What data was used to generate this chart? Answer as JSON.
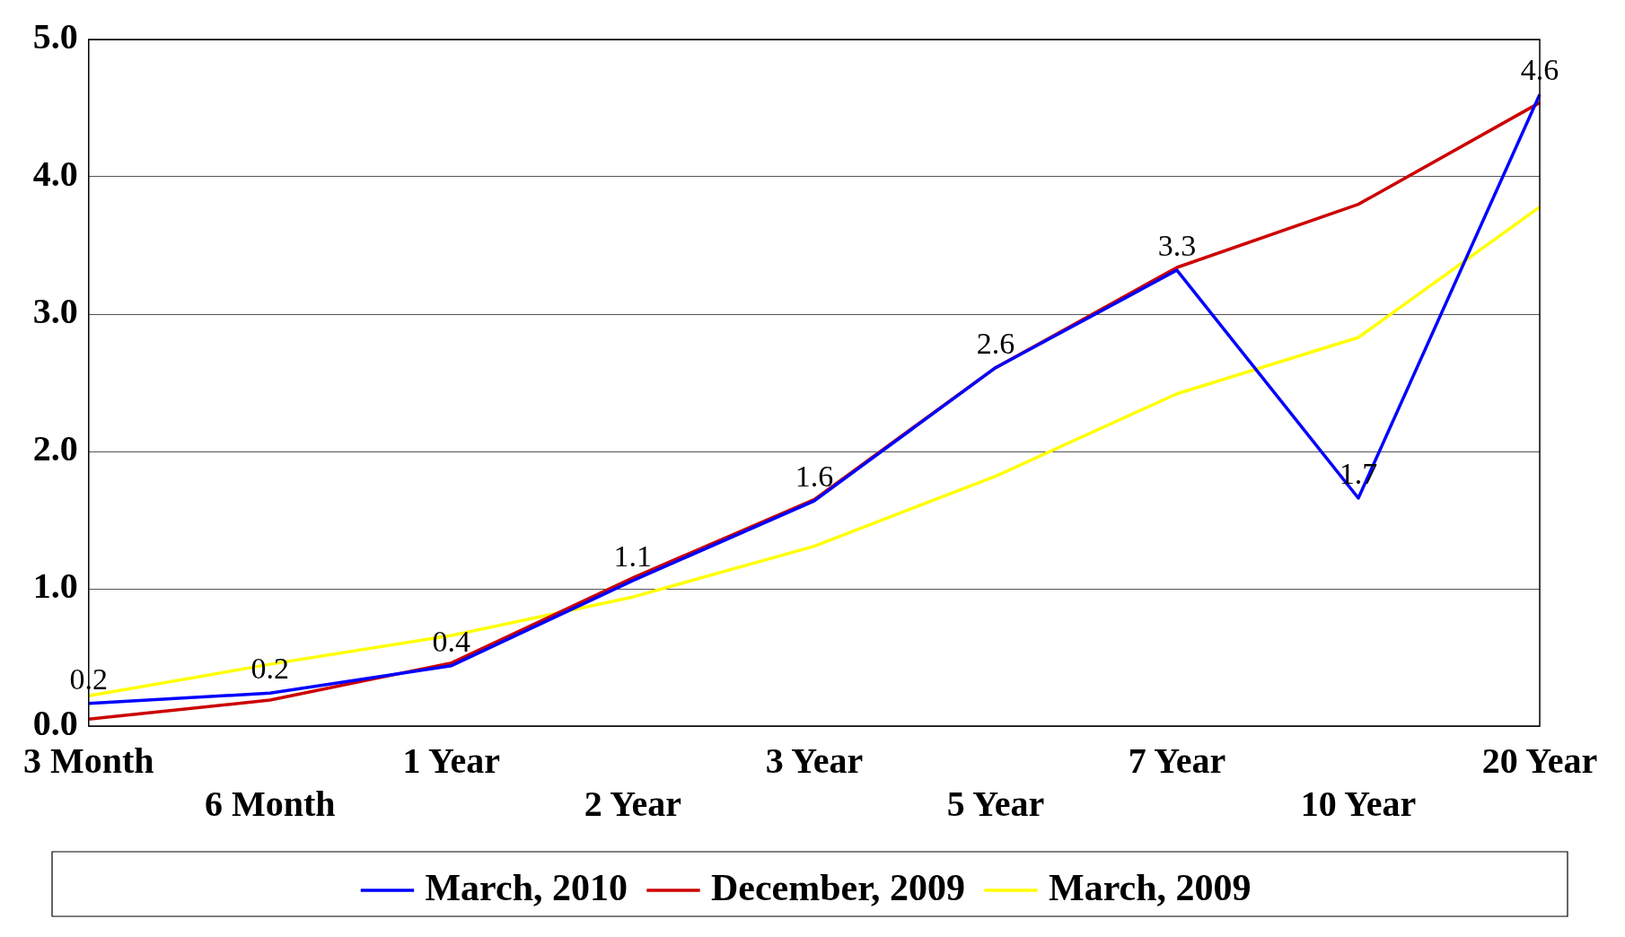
{
  "chart_data": {
    "type": "line",
    "categories": [
      "3 Month",
      "6 Month",
      "1 Year",
      "2 Year",
      "3 Year",
      "5 Year",
      "7 Year",
      "10 Year",
      "20 Year"
    ],
    "series": [
      {
        "name": "March, 2010",
        "color": "#0000ff",
        "values": [
          0.165,
          0.24,
          0.44,
          1.06,
          1.64,
          2.61,
          3.32,
          1.66,
          4.6
        ],
        "value_labels": [
          "0.2",
          "0.2",
          "0.4",
          "1.1",
          "1.6",
          "2.6",
          "3.3",
          "1.7",
          "4.6"
        ]
      },
      {
        "name": "December, 2009",
        "color": "#cc0000",
        "values": [
          0.05,
          0.19,
          0.46,
          1.08,
          1.65,
          2.61,
          3.34,
          3.8,
          4.54
        ]
      },
      {
        "name": "March, 2009",
        "color": "#ffff00",
        "values": [
          0.22,
          0.45,
          0.66,
          0.94,
          1.31,
          1.82,
          2.42,
          2.83,
          3.78
        ]
      }
    ],
    "ylim": [
      0,
      5
    ],
    "yticks": [
      {
        "value": 0,
        "label": "0.0"
      },
      {
        "value": 1,
        "label": "1.0"
      },
      {
        "value": 2,
        "label": "2.0"
      },
      {
        "value": 3,
        "label": "3.0"
      },
      {
        "value": 4,
        "label": "4.0"
      },
      {
        "value": 5,
        "label": "5.0"
      }
    ],
    "grid": "y",
    "legend": "bottom",
    "marker": "none",
    "line_style": "solid"
  }
}
